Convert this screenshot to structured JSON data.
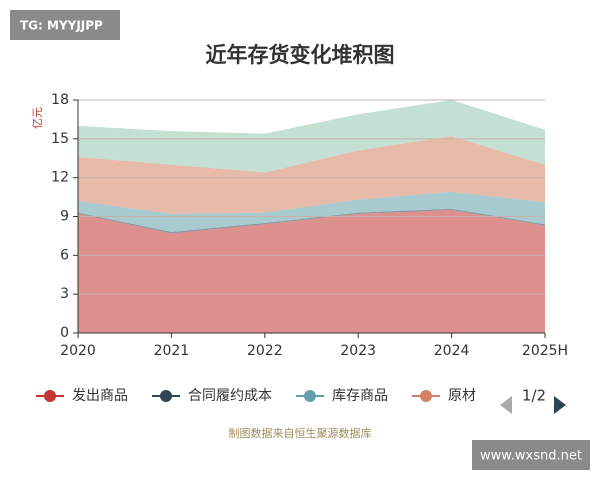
{
  "watermark": "TG: MYYJJPP",
  "site": "www.wxsnd.net",
  "legend_page": "1/2",
  "chart_data": {
    "type": "area",
    "stacked": true,
    "title": "近年存货变化堆积图",
    "y_label": "亿元",
    "source": "制图数据来自恒生聚源数据库",
    "categories": [
      "2020",
      "2021",
      "2022",
      "2023",
      "2024",
      "2025H"
    ],
    "series": [
      {
        "name": "发出商品",
        "color": "#c23531",
        "values": [
          9.2,
          7.7,
          8.4,
          9.2,
          9.5,
          8.3
        ]
      },
      {
        "name": "合同履约成本",
        "color": "#2f4554",
        "values": [
          0.1,
          0.1,
          0.1,
          0.1,
          0.1,
          0.1
        ]
      },
      {
        "name": "库存商品",
        "color": "#61a0a8",
        "values": [
          0.9,
          1.4,
          0.8,
          1.0,
          1.3,
          1.7
        ]
      },
      {
        "name": "原材",
        "color": "#d48265",
        "values": [
          3.4,
          3.8,
          3.1,
          3.8,
          4.3,
          2.9
        ]
      },
      {
        "color": "#91c7ae",
        "values": [
          2.4,
          2.6,
          3.0,
          2.8,
          2.8,
          2.7
        ]
      }
    ],
    "ylim": [
      0,
      18
    ],
    "yticks": [
      0,
      3,
      6,
      9,
      12,
      15,
      18
    ],
    "grid": true
  }
}
